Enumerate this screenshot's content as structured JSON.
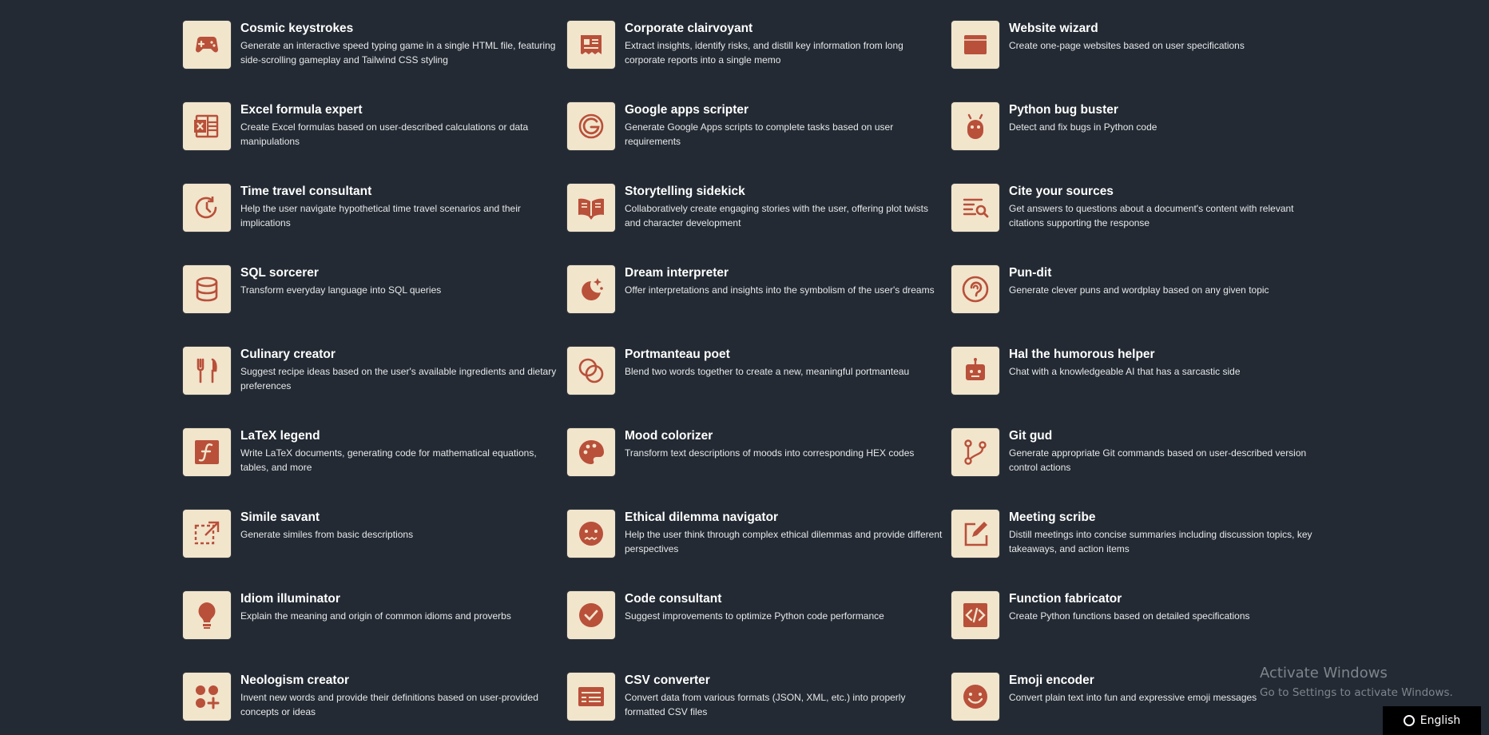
{
  "colors": {
    "background": "#232a33",
    "icon_bg": "#f1e5cc",
    "icon_fg": "#b9503a"
  },
  "cards": [
    {
      "title": "Cosmic keystrokes",
      "desc": "Generate an interactive speed typing game in a single HTML file, featuring side-scrolling gameplay and Tailwind CSS styling",
      "icon": "gamepad-icon"
    },
    {
      "title": "Corporate clairvoyant",
      "desc": "Extract insights, identify risks, and distill key information from long corporate reports into a single memo",
      "icon": "receipt-icon"
    },
    {
      "title": "Website wizard",
      "desc": "Create one-page websites based on user specifications",
      "icon": "browser-window-icon"
    },
    {
      "title": "Excel formula expert",
      "desc": "Create Excel formulas based on user-described calculations or data manipulations",
      "icon": "spreadsheet-icon"
    },
    {
      "title": "Google apps scripter",
      "desc": "Generate Google Apps scripts to complete tasks based on user requirements",
      "icon": "google-icon"
    },
    {
      "title": "Python bug buster",
      "desc": "Detect and fix bugs in Python code",
      "icon": "bug-icon"
    },
    {
      "title": "Time travel consultant",
      "desc": "Help the user navigate hypothetical time travel scenarios and their implications",
      "icon": "clock-rewind-icon"
    },
    {
      "title": "Storytelling sidekick",
      "desc": "Collaboratively create engaging stories with the user, offering plot twists and character development",
      "icon": "open-book-icon"
    },
    {
      "title": "Cite your sources",
      "desc": "Get answers to questions about a document's content with relevant citations supporting the response",
      "icon": "text-search-icon"
    },
    {
      "title": "SQL sorcerer",
      "desc": "Transform everyday language into SQL queries",
      "icon": "database-icon"
    },
    {
      "title": "Dream interpreter",
      "desc": "Offer interpretations and insights into the symbolism of the user's dreams",
      "icon": "moon-stars-icon"
    },
    {
      "title": "Pun-dit",
      "desc": "Generate clever puns and wordplay based on any given topic",
      "icon": "ear-icon"
    },
    {
      "title": "Culinary creator",
      "desc": "Suggest recipe ideas based on the user's available ingredients and dietary preferences",
      "icon": "fork-knife-icon"
    },
    {
      "title": "Portmanteau poet",
      "desc": "Blend two words together to create a new, meaningful portmanteau",
      "icon": "overlapping-circles-icon"
    },
    {
      "title": "Hal the humorous helper",
      "desc": "Chat with a knowledgeable AI that has a sarcastic side",
      "icon": "robot-icon"
    },
    {
      "title": "LaTeX legend",
      "desc": "Write LaTeX documents, generating code for mathematical equations, tables, and more",
      "icon": "function-icon"
    },
    {
      "title": "Mood colorizer",
      "desc": "Transform text descriptions of moods into corresponding HEX codes",
      "icon": "palette-icon"
    },
    {
      "title": "Git gud",
      "desc": "Generate appropriate Git commands based on user-described version control actions",
      "icon": "git-branch-icon"
    },
    {
      "title": "Simile savant",
      "desc": "Generate similes from basic descriptions",
      "icon": "dashed-square-icon"
    },
    {
      "title": "Ethical dilemma navigator",
      "desc": "Help the user think through complex ethical dilemmas and provide different perspectives",
      "icon": "uneasy-face-icon"
    },
    {
      "title": "Meeting scribe",
      "desc": "Distill meetings into concise summaries including discussion topics, key takeaways, and action items",
      "icon": "edit-note-icon"
    },
    {
      "title": "Idiom illuminator",
      "desc": "Explain the meaning and origin of common idioms and proverbs",
      "icon": "lightbulb-icon"
    },
    {
      "title": "Code consultant",
      "desc": "Suggest improvements to optimize Python code performance",
      "icon": "check-circle-icon"
    },
    {
      "title": "Function fabricator",
      "desc": "Create Python functions based on detailed specifications",
      "icon": "code-icon"
    },
    {
      "title": "Neologism creator",
      "desc": "Invent new words and provide their definitions based on user-provided concepts or ideas",
      "icon": "shapes-plus-icon"
    },
    {
      "title": "CSV converter",
      "desc": "Convert data from various formats (JSON, XML, etc.) into properly formatted CSV files",
      "icon": "table-icon"
    },
    {
      "title": "Emoji encoder",
      "desc": "Convert plain text into fun and expressive emoji messages",
      "icon": "smiley-icon"
    }
  ],
  "watermark": {
    "title": "Activate Windows",
    "subtitle": "Go to Settings to activate Windows."
  },
  "language_button": {
    "label": "English"
  }
}
